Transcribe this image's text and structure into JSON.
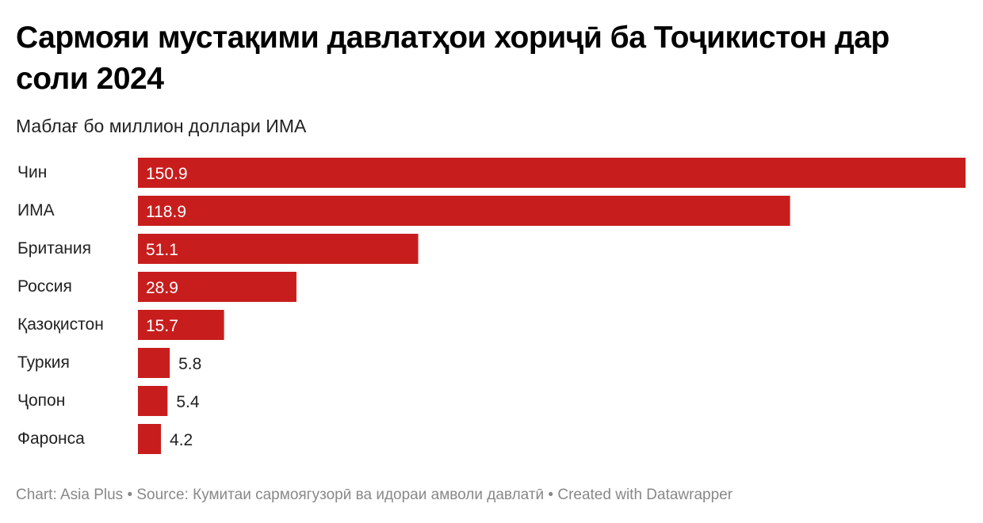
{
  "title": "Сармояи мустақими давлатҳои хориҷӣ ба Тоҷикистон дар соли 2024",
  "subtitle": "Маблағ бо миллион доллари ИМА",
  "footer": "Chart: Asia Plus • Source: Кумитаи сармоягузорӣ ва идораи амволи давлатӣ • Created with Datawrapper",
  "chart_data": {
    "type": "bar",
    "orientation": "horizontal",
    "title": "Сармояи мустақими давлатҳои хориҷӣ ба Тоҷикистон дар соли 2024",
    "ylabel": "Маблағ бо миллион доллари ИМА",
    "categories": [
      "Чин",
      "ИМА",
      "Британия",
      "Россия",
      "Қазоқистон",
      "Туркия",
      "Ҷопон",
      "Фаронса"
    ],
    "values": [
      150.9,
      118.9,
      51.1,
      28.9,
      15.7,
      5.8,
      5.4,
      4.2
    ],
    "labels": [
      "150.9",
      "118.9",
      "51.1",
      "28.9",
      "15.7",
      "5.8",
      "5.4",
      "4.2"
    ],
    "xlim": [
      0,
      150.9
    ],
    "color": "#c71e1d"
  }
}
